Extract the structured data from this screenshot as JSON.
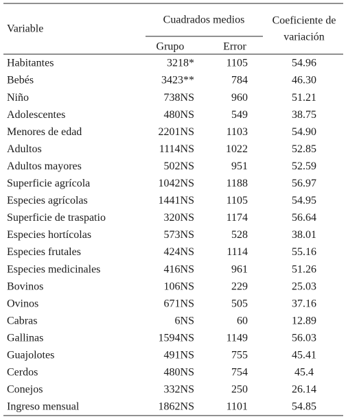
{
  "table": {
    "header": {
      "variable": "Variable",
      "group": "Cuadrados medios",
      "grupo": "Grupo",
      "error": "Error",
      "cv_line1": "Coeficiente de",
      "cv_line2": "variación"
    },
    "rows": [
      [
        "Habitantes",
        "3218*",
        "1105",
        "54.96"
      ],
      [
        "Bebés",
        "3423**",
        "784",
        "46.30"
      ],
      [
        "Niño",
        "738NS",
        "960",
        "51.21"
      ],
      [
        "Adolescentes",
        "480NS",
        "549",
        "38.75"
      ],
      [
        "Menores de edad",
        "2201NS",
        "1103",
        "54.90"
      ],
      [
        "Adultos",
        "1114NS",
        "1022",
        "52.85"
      ],
      [
        "Adultos mayores",
        "502NS",
        "951",
        "52.59"
      ],
      [
        "Superficie agrícola",
        "1042NS",
        "1188",
        "56.97"
      ],
      [
        "Especies agrícolas",
        "1441NS",
        "1105",
        "54.95"
      ],
      [
        "Superficie de traspatio",
        "320NS",
        "1174",
        "56.64"
      ],
      [
        "Especies hortícolas",
        "573NS",
        "528",
        "38.01"
      ],
      [
        "Especies frutales",
        "424NS",
        "1114",
        "55.16"
      ],
      [
        "Especies medicinales",
        "416NS",
        "961",
        "51.26"
      ],
      [
        "Bovinos",
        "106NS",
        "229",
        "25.03"
      ],
      [
        "Ovinos",
        "671NS",
        "505",
        "37.16"
      ],
      [
        "Cabras",
        "6NS",
        "60",
        "12.89"
      ],
      [
        "Gallinas",
        "1594NS",
        "1149",
        "56.03"
      ],
      [
        "Guajolotes",
        "491NS",
        "755",
        "45.41"
      ],
      [
        "Cerdos",
        "480NS",
        "754",
        "45.4"
      ],
      [
        "Conejos",
        "332NS",
        "250",
        "26.14"
      ],
      [
        "Ingreso mensual",
        "1862NS",
        "1101",
        "54.85"
      ]
    ]
  }
}
